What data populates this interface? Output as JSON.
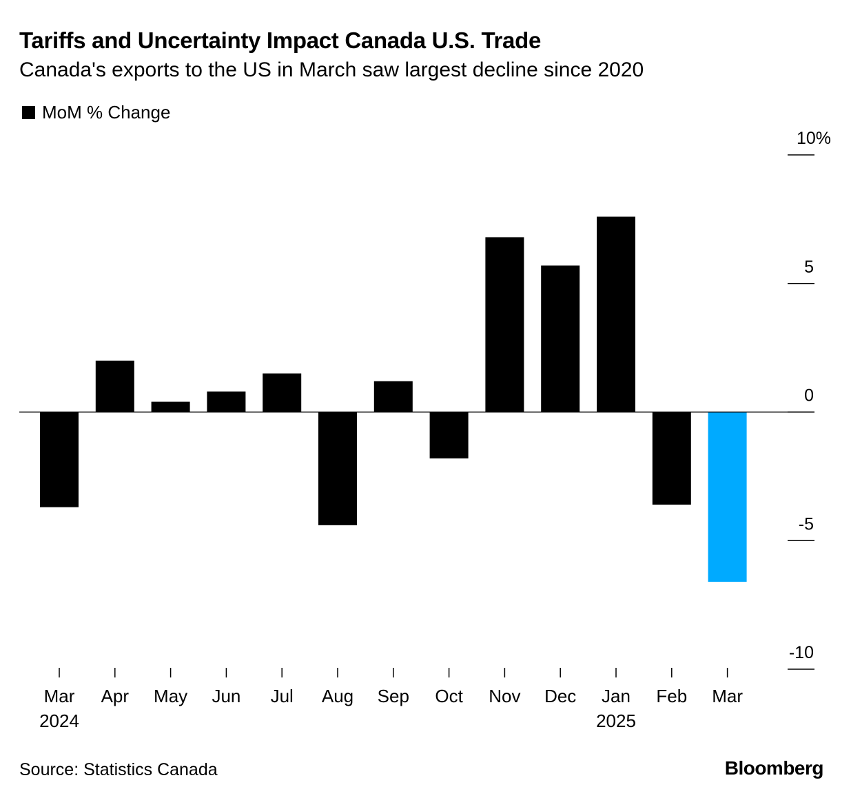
{
  "header": {
    "title": "Tariffs and Uncertainty Impact Canada U.S. Trade",
    "subtitle": "Canada's exports to the US in March saw largest decline since 2020"
  },
  "legend": {
    "label": "MoM % Change",
    "color": "#000000"
  },
  "footer": {
    "source": "Source: Statistics Canada",
    "brand": "Bloomberg"
  },
  "colors": {
    "bar": "#000000",
    "highlight": "#00AAFF"
  },
  "chart_data": {
    "type": "bar",
    "title": "Tariffs and Uncertainty Impact Canada U.S. Trade",
    "subtitle": "Canada's exports to the US in March saw largest decline since 2020",
    "xlabel": "",
    "ylabel": "MoM % Change",
    "ylim": [
      -10,
      10
    ],
    "y_ticks": [
      10,
      5,
      0,
      -5,
      -10
    ],
    "y_tick_labels": [
      "10%",
      "5",
      "0",
      "-5",
      "-10"
    ],
    "y_axis_position": "right",
    "grid": false,
    "legend_position": "top-left",
    "categories": [
      "Mar",
      "Apr",
      "May",
      "Jun",
      "Jul",
      "Aug",
      "Sep",
      "Oct",
      "Nov",
      "Dec",
      "Jan",
      "Feb",
      "Mar"
    ],
    "category_years": [
      "2024",
      "",
      "",
      "",
      "",
      "",
      "",
      "",
      "",
      "",
      "2025",
      "",
      ""
    ],
    "series": [
      {
        "name": "MoM % Change",
        "values": [
          -3.7,
          2.0,
          0.4,
          0.8,
          1.5,
          -4.4,
          1.2,
          -1.8,
          6.8,
          5.7,
          7.6,
          -3.6,
          -6.6
        ],
        "highlight_index": 12
      }
    ]
  }
}
